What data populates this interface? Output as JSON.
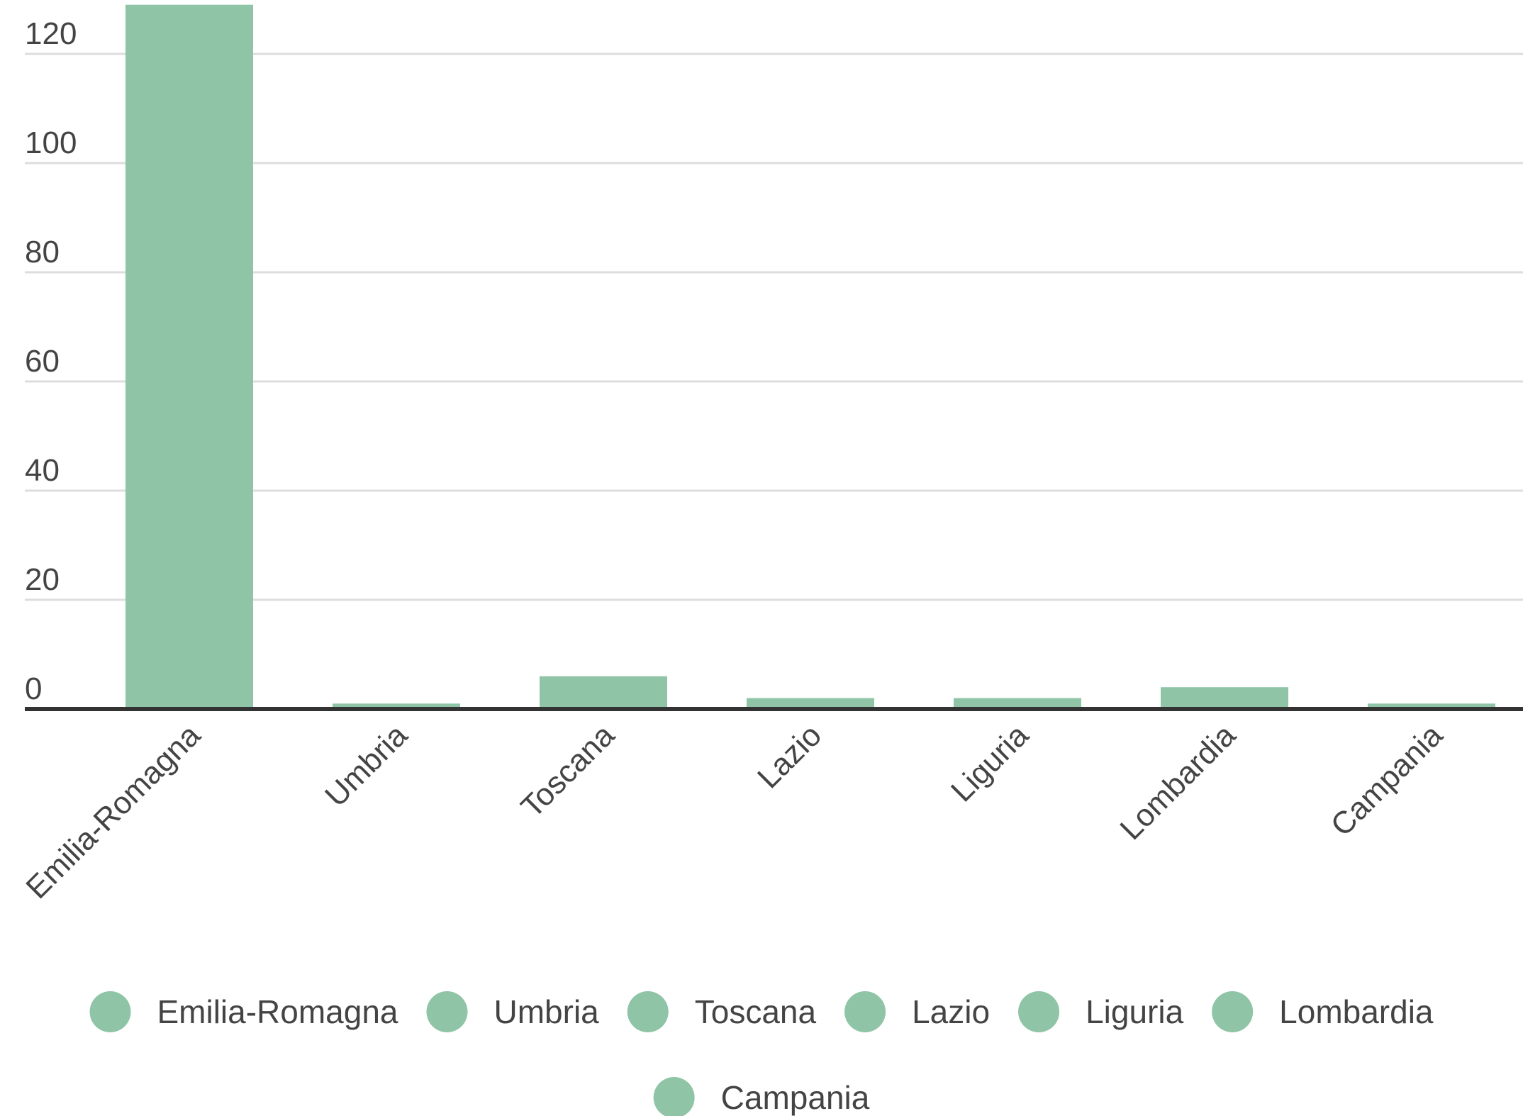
{
  "chart_data": {
    "type": "bar",
    "categories": [
      "Emilia-Romagna",
      "Umbria",
      "Toscana",
      "Lazio",
      "Liguria",
      "Lombardia",
      "Campania"
    ],
    "values": [
      129,
      1,
      6,
      2,
      2,
      4,
      1
    ],
    "ylim": [
      0,
      130
    ],
    "yticks": [
      0,
      20,
      40,
      60,
      80,
      100,
      120
    ],
    "grid": true,
    "legend_position": "bottom",
    "legend_entries": [
      "Emilia-Romagna",
      "Umbria",
      "Toscana",
      "Lazio",
      "Liguria",
      "Lombardia",
      "Campania"
    ],
    "bar_color": "#8fc4a6"
  }
}
